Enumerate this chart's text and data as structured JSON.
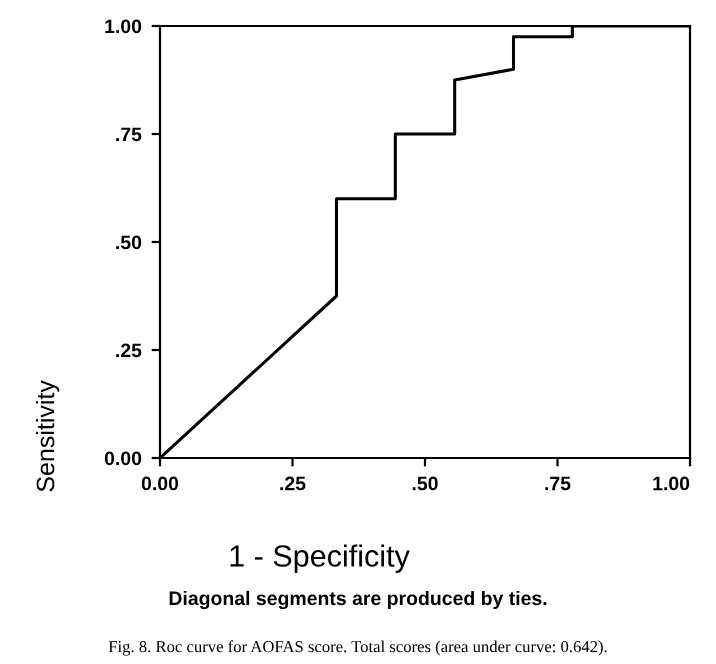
{
  "chart_data": {
    "type": "line",
    "xlabel": "1 - Specificity",
    "ylabel": "Sensitivity",
    "x": [
      0,
      0.333,
      0.333,
      0.444,
      0.444,
      0.556,
      0.556,
      0.667,
      0.667,
      0.778,
      0.778,
      1.0
    ],
    "series": [
      {
        "color": "#000000",
        "values": [
          0,
          0.375,
          0.6,
          0.6,
          0.75,
          0.75,
          0.875,
          0.9,
          0.975,
          0.975,
          1.0,
          1.0
        ]
      }
    ],
    "xlim": [
      0,
      1
    ],
    "ylim": [
      0,
      1
    ],
    "xticks": [
      {
        "value": 0,
        "label": "0.00"
      },
      {
        "value": 0.25,
        "label": ".25"
      },
      {
        "value": 0.5,
        "label": ".50"
      },
      {
        "value": 0.75,
        "label": ".75"
      },
      {
        "value": 1,
        "label": "1.00"
      }
    ],
    "yticks": [
      {
        "value": 0,
        "label": "0.00"
      },
      {
        "value": 0.25,
        "label": ".25"
      },
      {
        "value": 0.5,
        "label": ".50"
      },
      {
        "value": 0.75,
        "label": ".75"
      },
      {
        "value": 1,
        "label": "1.00"
      }
    ],
    "grid": false,
    "marker": "none",
    "line_style": "solid",
    "annotations": [
      "Diagonal segments are produced by ties.",
      "Fig. 8. Roc curve for AOFAS score. Total scores (area under curve: 0.642)."
    ]
  }
}
